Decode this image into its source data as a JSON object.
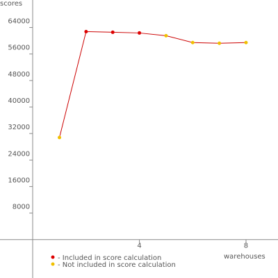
{
  "chart_data": {
    "type": "line",
    "y_label": "scores",
    "x_label": "warehouses",
    "x": [
      1,
      2,
      3,
      4,
      5,
      6,
      7,
      8
    ],
    "values": [
      30800,
      62760,
      62560,
      62350,
      61520,
      59460,
      59250,
      59460
    ],
    "included": [
      false,
      true,
      true,
      true,
      false,
      false,
      false,
      false
    ],
    "line_color": "#cc0000",
    "legend": [
      {
        "label": "- Included in score calculation",
        "color": "#dd0000"
      },
      {
        "label": "- Not included in score calculation",
        "color": "#f0c000"
      }
    ],
    "xlim": [
      -1.23,
      9.2
    ],
    "xticks": [
      4,
      8
    ],
    "ylim": [
      -11600,
      72300
    ],
    "yticks": [
      8000,
      16000,
      24000,
      32000,
      40000,
      48000,
      56000,
      64000
    ]
  }
}
